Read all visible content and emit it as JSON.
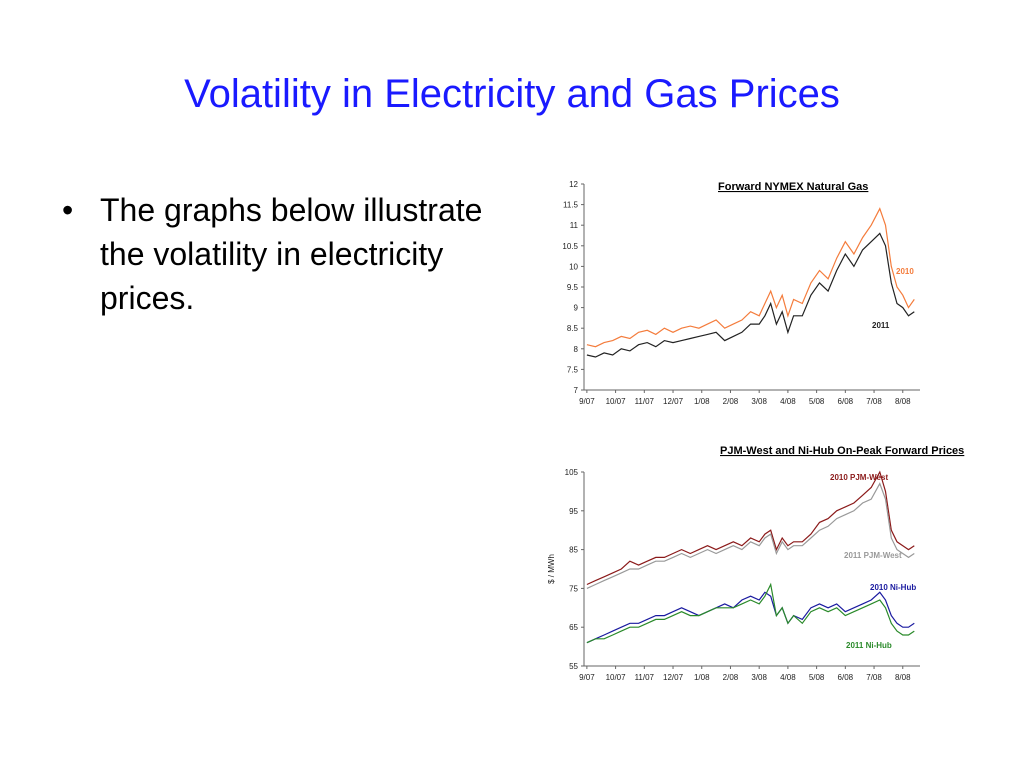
{
  "slide": {
    "title": "Volatility in Electricity and Gas Prices",
    "bullet": "The graphs below illustrate the volatility in electricity prices."
  },
  "colors": {
    "title": "#1a1aff"
  },
  "chart_data": [
    {
      "type": "line",
      "title": "Forward NYMEX Natural Gas",
      "xlabel": "",
      "ylabel": "",
      "x_ticks": [
        "9/07",
        "10/07",
        "11/07",
        "12/07",
        "1/08",
        "2/08",
        "3/08",
        "4/08",
        "5/08",
        "6/08",
        "7/08",
        "8/08"
      ],
      "y_ticks": [
        "12",
        "11.5",
        "11",
        "10.5",
        "10",
        "9.5",
        "9",
        "8.5",
        "8",
        "7.5",
        "7"
      ],
      "ylim": [
        7,
        12
      ],
      "grid": false,
      "series": [
        {
          "name": "2010",
          "color": "#f47c3c",
          "x": [
            0,
            0.3,
            0.6,
            0.9,
            1.2,
            1.5,
            1.8,
            2.1,
            2.4,
            2.7,
            3.0,
            3.3,
            3.6,
            3.9,
            4.2,
            4.5,
            4.8,
            5.1,
            5.4,
            5.7,
            6.0,
            6.2,
            6.4,
            6.6,
            6.8,
            7.0,
            7.2,
            7.5,
            7.8,
            8.1,
            8.4,
            8.7,
            9.0,
            9.3,
            9.6,
            9.9,
            10.2,
            10.4,
            10.6,
            10.8,
            11.0,
            11.2,
            11.4
          ],
          "values": [
            8.1,
            8.05,
            8.15,
            8.2,
            8.3,
            8.25,
            8.4,
            8.45,
            8.35,
            8.5,
            8.4,
            8.5,
            8.55,
            8.5,
            8.6,
            8.7,
            8.5,
            8.6,
            8.7,
            8.9,
            8.8,
            9.1,
            9.4,
            9.0,
            9.3,
            8.8,
            9.2,
            9.1,
            9.6,
            9.9,
            9.7,
            10.2,
            10.6,
            10.3,
            10.7,
            11.0,
            11.4,
            11.0,
            10.0,
            9.5,
            9.3,
            9.0,
            9.2
          ]
        },
        {
          "name": "2011",
          "color": "#222222",
          "x": [
            0,
            0.3,
            0.6,
            0.9,
            1.2,
            1.5,
            1.8,
            2.1,
            2.4,
            2.7,
            3.0,
            3.3,
            3.6,
            3.9,
            4.2,
            4.5,
            4.8,
            5.1,
            5.4,
            5.7,
            6.0,
            6.2,
            6.4,
            6.6,
            6.8,
            7.0,
            7.2,
            7.5,
            7.8,
            8.1,
            8.4,
            8.7,
            9.0,
            9.3,
            9.6,
            9.9,
            10.2,
            10.4,
            10.6,
            10.8,
            11.0,
            11.2,
            11.4
          ],
          "values": [
            7.85,
            7.8,
            7.9,
            7.85,
            8.0,
            7.95,
            8.1,
            8.15,
            8.05,
            8.2,
            8.15,
            8.2,
            8.25,
            8.3,
            8.35,
            8.4,
            8.2,
            8.3,
            8.4,
            8.6,
            8.6,
            8.8,
            9.1,
            8.6,
            8.9,
            8.4,
            8.8,
            8.8,
            9.3,
            9.6,
            9.4,
            9.9,
            10.3,
            10.0,
            10.4,
            10.6,
            10.8,
            10.5,
            9.6,
            9.1,
            9.0,
            8.8,
            8.9
          ]
        }
      ]
    },
    {
      "type": "line",
      "title": "PJM-West and Ni-Hub On-Peak Forward Prices",
      "xlabel": "",
      "ylabel": "$ / MWh",
      "x_ticks": [
        "9/07",
        "10/07",
        "11/07",
        "12/07",
        "1/08",
        "2/08",
        "3/08",
        "4/08",
        "5/08",
        "6/08",
        "7/08",
        "8/08"
      ],
      "y_ticks": [
        "105",
        "95",
        "85",
        "75",
        "65",
        "55"
      ],
      "ylim": [
        55,
        105
      ],
      "grid": false,
      "series": [
        {
          "name": "2010 PJM-West",
          "color": "#8b1a1a",
          "x": [
            0,
            0.3,
            0.6,
            0.9,
            1.2,
            1.5,
            1.8,
            2.1,
            2.4,
            2.7,
            3.0,
            3.3,
            3.6,
            3.9,
            4.2,
            4.5,
            4.8,
            5.1,
            5.4,
            5.7,
            6.0,
            6.2,
            6.4,
            6.6,
            6.8,
            7.0,
            7.2,
            7.5,
            7.8,
            8.1,
            8.4,
            8.7,
            9.0,
            9.3,
            9.6,
            9.9,
            10.2,
            10.4,
            10.6,
            10.8,
            11.0,
            11.2,
            11.4
          ],
          "values": [
            76,
            77,
            78,
            79,
            80,
            82,
            81,
            82,
            83,
            83,
            84,
            85,
            84,
            85,
            86,
            85,
            86,
            87,
            86,
            88,
            87,
            89,
            90,
            85,
            88,
            86,
            87,
            87,
            89,
            92,
            93,
            95,
            96,
            97,
            99,
            101,
            105,
            100,
            90,
            87,
            86,
            85,
            86
          ]
        },
        {
          "name": "2011 PJM-West",
          "color": "#999999",
          "x": [
            0,
            0.3,
            0.6,
            0.9,
            1.2,
            1.5,
            1.8,
            2.1,
            2.4,
            2.7,
            3.0,
            3.3,
            3.6,
            3.9,
            4.2,
            4.5,
            4.8,
            5.1,
            5.4,
            5.7,
            6.0,
            6.2,
            6.4,
            6.6,
            6.8,
            7.0,
            7.2,
            7.5,
            7.8,
            8.1,
            8.4,
            8.7,
            9.0,
            9.3,
            9.6,
            9.9,
            10.2,
            10.4,
            10.6,
            10.8,
            11.0,
            11.2,
            11.4
          ],
          "values": [
            75,
            76,
            77,
            78,
            79,
            80,
            80,
            81,
            82,
            82,
            83,
            84,
            83,
            84,
            85,
            84,
            85,
            86,
            85,
            87,
            86,
            88,
            89,
            84,
            87,
            85,
            86,
            86,
            88,
            90,
            91,
            93,
            94,
            95,
            97,
            98,
            102,
            98,
            88,
            85,
            84,
            83,
            84
          ]
        },
        {
          "name": "2010 Ni-Hub",
          "color": "#1a1aa0",
          "x": [
            0,
            0.3,
            0.6,
            0.9,
            1.2,
            1.5,
            1.8,
            2.1,
            2.4,
            2.7,
            3.0,
            3.3,
            3.6,
            3.9,
            4.2,
            4.5,
            4.8,
            5.1,
            5.4,
            5.7,
            6.0,
            6.2,
            6.4,
            6.6,
            6.8,
            7.0,
            7.2,
            7.5,
            7.8,
            8.1,
            8.4,
            8.7,
            9.0,
            9.3,
            9.6,
            9.9,
            10.2,
            10.4,
            10.6,
            10.8,
            11.0,
            11.2,
            11.4
          ],
          "values": [
            61,
            62,
            63,
            64,
            65,
            66,
            66,
            67,
            68,
            68,
            69,
            70,
            69,
            68,
            69,
            70,
            71,
            70,
            72,
            73,
            72,
            74,
            73,
            68,
            70,
            66,
            68,
            67,
            70,
            71,
            70,
            71,
            69,
            70,
            71,
            72,
            74,
            72,
            68,
            66,
            65,
            65,
            66
          ]
        },
        {
          "name": "2011 Ni-Hub",
          "color": "#2a8a2a",
          "x": [
            0,
            0.3,
            0.6,
            0.9,
            1.2,
            1.5,
            1.8,
            2.1,
            2.4,
            2.7,
            3.0,
            3.3,
            3.6,
            3.9,
            4.2,
            4.5,
            4.8,
            5.1,
            5.4,
            5.7,
            6.0,
            6.2,
            6.4,
            6.6,
            6.8,
            7.0,
            7.2,
            7.5,
            7.8,
            8.1,
            8.4,
            8.7,
            9.0,
            9.3,
            9.6,
            9.9,
            10.2,
            10.4,
            10.6,
            10.8,
            11.0,
            11.2,
            11.4
          ],
          "values": [
            61,
            62,
            62,
            63,
            64,
            65,
            65,
            66,
            67,
            67,
            68,
            69,
            68,
            68,
            69,
            70,
            70,
            70,
            71,
            72,
            71,
            73,
            76,
            68,
            70,
            66,
            68,
            66,
            69,
            70,
            69,
            70,
            68,
            69,
            70,
            71,
            72,
            70,
            66,
            64,
            63,
            63,
            64
          ]
        }
      ]
    }
  ]
}
